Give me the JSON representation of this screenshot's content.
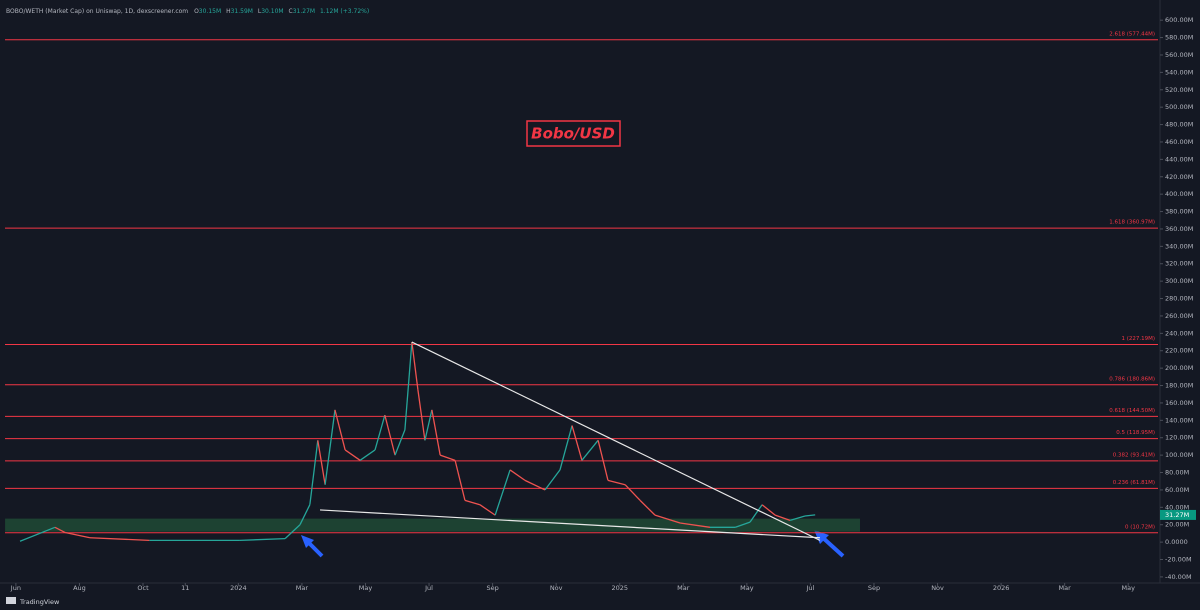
{
  "header": {
    "symbol": "BOBO/WETH (Market Cap) on Uniswap, 1D, dexscreener.com",
    "ohlc": [
      {
        "key": "O",
        "value": "30.15M"
      },
      {
        "key": "H",
        "value": "31.59M"
      },
      {
        "key": "L",
        "value": "30.10M"
      },
      {
        "key": "C",
        "value": "31.27M"
      }
    ],
    "change": "1.12M (+3.72%)"
  },
  "footer": "TradingView",
  "chart_data": {
    "type": "price-line",
    "annotation": "Bobo/USD",
    "x": [
      0.13,
      1.23,
      1.55,
      2.33,
      4.2,
      7.05,
      8.47,
      8.94,
      9.25,
      9.5,
      9.73,
      10.04,
      10.36,
      10.83,
      11.3,
      11.61,
      11.93,
      12.24,
      12.46,
      12.65,
      12.87,
      13.09,
      13.35,
      13.82,
      14.13,
      14.6,
      15.08,
      15.55,
      16.02,
      16.65,
      17.12,
      17.5,
      17.81,
      18.32,
      18.63,
      19.17,
      19.64,
      20.11,
      20.9,
      21.84,
      22.63,
      23.1,
      23.48,
      23.89,
      24.36,
      24.83,
      25.15
    ],
    "values": [
      1,
      17,
      11,
      5,
      2,
      2,
      4,
      20,
      43,
      117,
      66,
      152,
      106,
      94,
      106,
      146,
      100,
      129,
      230,
      175,
      117,
      152,
      100,
      94,
      48,
      43,
      31,
      83,
      71,
      60,
      83,
      134,
      94,
      117,
      71,
      66,
      48,
      31,
      22,
      17,
      17,
      23,
      43,
      31,
      25,
      30,
      31.27
    ],
    "up_color": "#26a69a",
    "down_color": "#ef5350",
    "last_price": {
      "value": 31.27,
      "label": "31.27M"
    },
    "last_price_color": "#089981",
    "fib_color": "#f23645",
    "fib_levels": [
      {
        "value": 577.44,
        "label": "2.618 (577.44M)"
      },
      {
        "value": 360.97,
        "label": "1.618 (360.97M)"
      },
      {
        "value": 227.19,
        "label": "1 (227.19M)"
      },
      {
        "value": 180.86,
        "label": "0.786 (180.86M)"
      },
      {
        "value": 144.5,
        "label": "0.618 (144.50M)"
      },
      {
        "value": 118.95,
        "label": "0.5 (118.95M)"
      },
      {
        "value": 93.41,
        "label": "0.382 (93.41M)"
      },
      {
        "value": 61.81,
        "label": "0.236 (61.81M)"
      },
      {
        "value": 10.72,
        "label": "0 (10.72M)"
      }
    ],
    "zone": {
      "x": [
        -0.34,
        26.56
      ],
      "y": [
        12,
        27
      ],
      "color": "#1f4a35"
    },
    "trendlines": [
      {
        "x": [
          12.46,
          25.3
        ],
        "y": [
          230,
          2
        ]
      },
      {
        "x": [
          9.57,
          25.3
        ],
        "y": [
          37,
          5
        ]
      }
    ],
    "trendline_color": "#e8e8e8",
    "xlim": [
      -0.5,
      36
    ],
    "ylim": [
      -47,
      614
    ],
    "xticks": [
      {
        "value": 0,
        "label": "Jun"
      },
      {
        "value": 2,
        "label": "Aug"
      },
      {
        "value": 4,
        "label": "Oct"
      },
      {
        "value": 5.33,
        "label": "11"
      },
      {
        "value": 7,
        "label": "2024"
      },
      {
        "value": 9,
        "label": "Mar"
      },
      {
        "value": 11,
        "label": "May"
      },
      {
        "value": 13,
        "label": "Jul"
      },
      {
        "value": 15,
        "label": "Sep"
      },
      {
        "value": 17,
        "label": "Nov"
      },
      {
        "value": 19,
        "label": "2025"
      },
      {
        "value": 21,
        "label": "Mar"
      },
      {
        "value": 23,
        "label": "May"
      },
      {
        "value": 25,
        "label": "Jul"
      },
      {
        "value": 27,
        "label": "Sep"
      },
      {
        "value": 29,
        "label": "Nov"
      },
      {
        "value": 31,
        "label": "2026"
      },
      {
        "value": 33,
        "label": "Mar"
      },
      {
        "value": 35,
        "label": "May"
      }
    ],
    "yticks": [
      {
        "value": 600,
        "label": "600.00M"
      },
      {
        "value": 580,
        "label": "580.00M"
      },
      {
        "value": 560,
        "label": "560.00M"
      },
      {
        "value": 540,
        "label": "540.00M"
      },
      {
        "value": 520,
        "label": "520.00M"
      },
      {
        "value": 500,
        "label": "500.00M"
      },
      {
        "value": 480,
        "label": "480.00M"
      },
      {
        "value": 460,
        "label": "460.00M"
      },
      {
        "value": 440,
        "label": "440.00M"
      },
      {
        "value": 420,
        "label": "420.00M"
      },
      {
        "value": 400,
        "label": "400.00M"
      },
      {
        "value": 380,
        "label": "380.00M"
      },
      {
        "value": 360,
        "label": "360.00M"
      },
      {
        "value": 340,
        "label": "340.00M"
      },
      {
        "value": 320,
        "label": "320.00M"
      },
      {
        "value": 300,
        "label": "300.00M"
      },
      {
        "value": 280,
        "label": "280.00M"
      },
      {
        "value": 260,
        "label": "260.00M"
      },
      {
        "value": 240,
        "label": "240.00M"
      },
      {
        "value": 220,
        "label": "220.00M"
      },
      {
        "value": 200,
        "label": "200.00M"
      },
      {
        "value": 180,
        "label": "180.00M"
      },
      {
        "value": 160,
        "label": "160.00M"
      },
      {
        "value": 140,
        "label": "140.00M"
      },
      {
        "value": 120,
        "label": "120.00M"
      },
      {
        "value": 100,
        "label": "100.00M"
      },
      {
        "value": 80,
        "label": "80.00M"
      },
      {
        "value": 60,
        "label": "60.00M"
      },
      {
        "value": 40,
        "label": "40.00M"
      },
      {
        "value": 20,
        "label": "20.00M"
      },
      {
        "value": 0,
        "label": "0.0000"
      },
      {
        "value": -20,
        "label": "-20.00M"
      },
      {
        "value": -40,
        "label": "-40.00M"
      }
    ]
  }
}
